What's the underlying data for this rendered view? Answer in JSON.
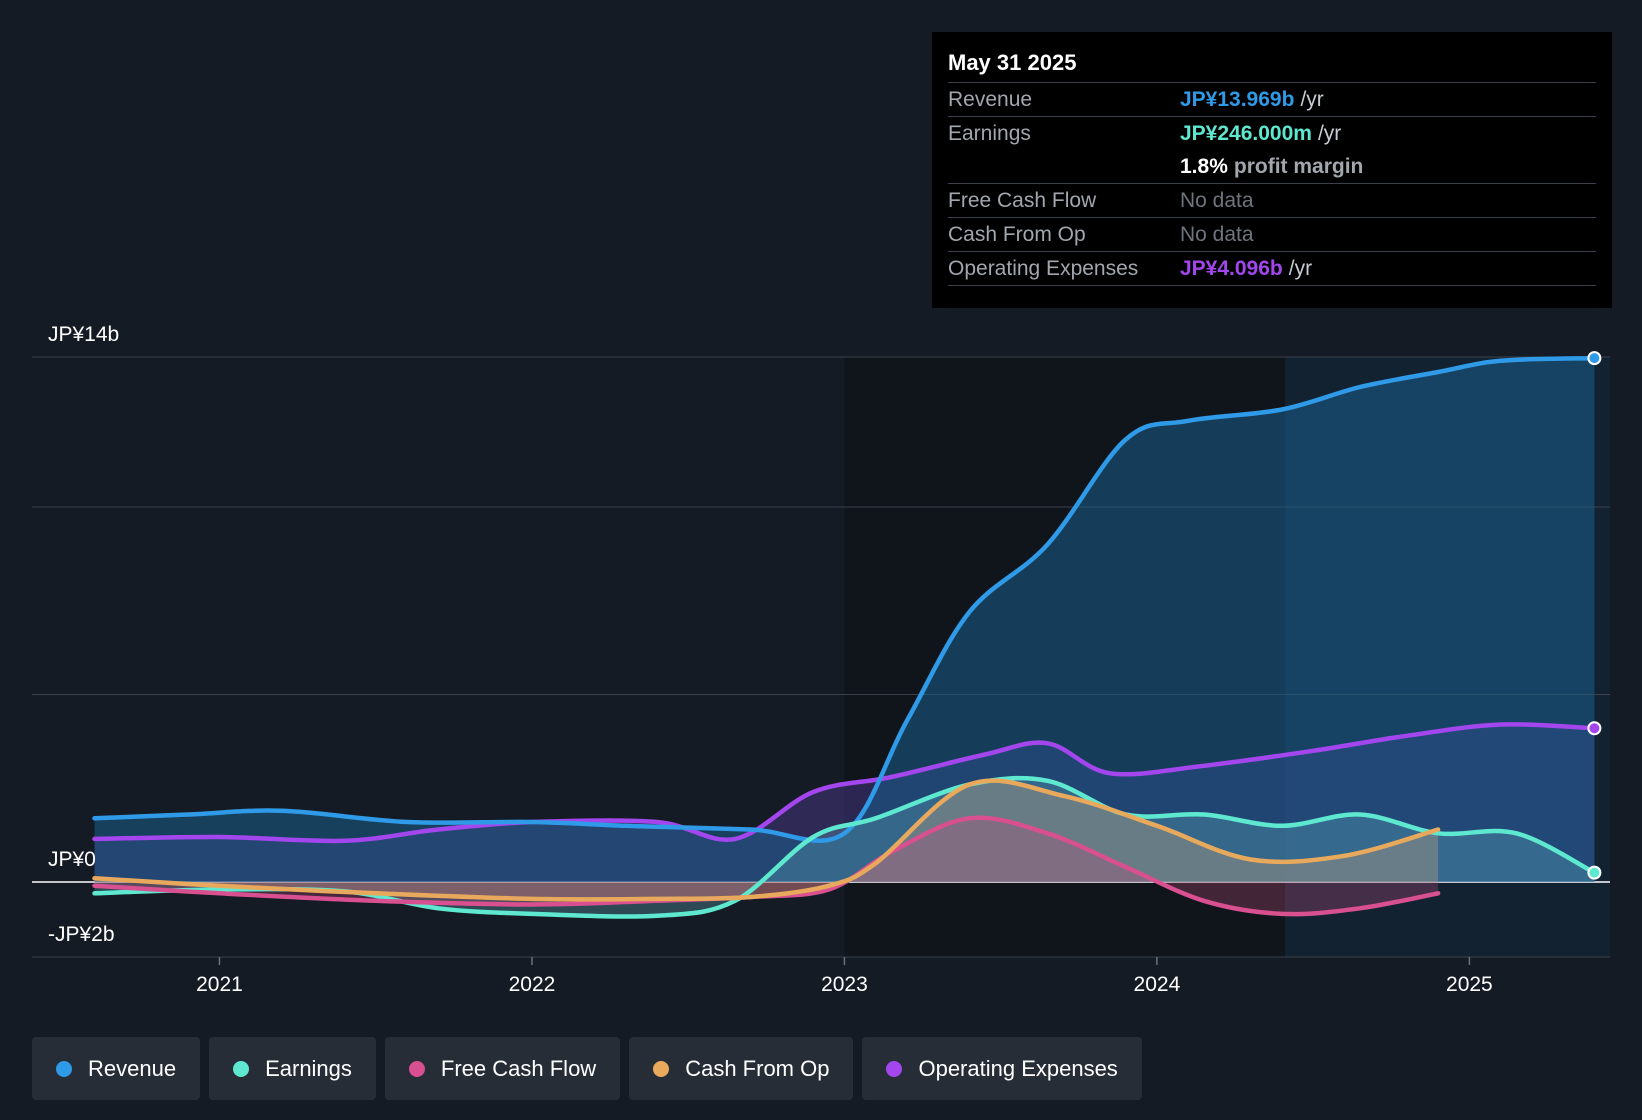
{
  "chart_data": {
    "type": "area",
    "x_range": [
      2020.4,
      2025.45
    ],
    "ylim": [
      -2.0,
      14.0
    ],
    "y_axis_labels": [
      {
        "value": 14,
        "text": "JP¥14b"
      },
      {
        "value": 0,
        "text": "JP¥0"
      },
      {
        "value": -2,
        "text": "-JP¥2b"
      }
    ],
    "gridlines": [
      14,
      10,
      5,
      0,
      -2
    ],
    "x_ticks": [
      {
        "value": 2021,
        "text": "2021"
      },
      {
        "value": 2022,
        "text": "2022"
      },
      {
        "value": 2023,
        "text": "2023"
      },
      {
        "value": 2024,
        "text": "2024"
      },
      {
        "value": 2025,
        "text": "2025"
      }
    ],
    "highlight_start": 2024.41,
    "series": [
      {
        "key": "revenue",
        "name": "Revenue",
        "color": "#2f9ae7",
        "fill": "#1a5f8c",
        "fill_opacity": 0.55,
        "x": [
          2020.6,
          2020.9,
          2021.2,
          2021.6,
          2022.0,
          2022.3,
          2022.7,
          2023.0,
          2023.2,
          2023.4,
          2023.65,
          2023.9,
          2024.1,
          2024.4,
          2024.65,
          2024.9,
          2025.1,
          2025.4
        ],
        "values": [
          1.7,
          1.8,
          1.9,
          1.6,
          1.6,
          1.5,
          1.4,
          1.3,
          4.3,
          7.2,
          9.0,
          11.8,
          12.3,
          12.6,
          13.2,
          13.6,
          13.9,
          13.97
        ]
      },
      {
        "key": "earnings",
        "name": "Earnings",
        "color": "#5ee8d0",
        "fill": "#63b6c4",
        "fill_opacity": 0.3,
        "x": [
          2020.6,
          2021.0,
          2021.4,
          2021.7,
          2022.0,
          2022.4,
          2022.65,
          2022.9,
          2023.1,
          2023.4,
          2023.65,
          2023.9,
          2024.15,
          2024.4,
          2024.65,
          2024.9,
          2025.15,
          2025.4
        ],
        "values": [
          -0.3,
          -0.2,
          -0.25,
          -0.7,
          -0.85,
          -0.9,
          -0.5,
          1.2,
          1.7,
          2.6,
          2.7,
          1.8,
          1.8,
          1.5,
          1.8,
          1.3,
          1.3,
          0.25
        ]
      },
      {
        "key": "fcf",
        "name": "Free Cash Flow",
        "color": "#d8508f",
        "fill": "#b84b7b",
        "fill_opacity": 0.3,
        "x": [
          2020.6,
          2021.0,
          2021.5,
          2022.0,
          2022.4,
          2022.7,
          2022.95,
          2023.15,
          2023.4,
          2023.65,
          2023.9,
          2024.15,
          2024.4,
          2024.65,
          2024.9
        ],
        "values": [
          -0.1,
          -0.3,
          -0.5,
          -0.6,
          -0.5,
          -0.4,
          -0.2,
          0.8,
          1.7,
          1.3,
          0.4,
          -0.5,
          -0.85,
          -0.7,
          -0.3
        ]
      },
      {
        "key": "cfo",
        "name": "Cash From Op",
        "color": "#e8a95c",
        "fill": "#c9a27a",
        "fill_opacity": 0.35,
        "x": [
          2020.6,
          2021.0,
          2021.5,
          2022.0,
          2022.4,
          2022.7,
          2022.95,
          2023.1,
          2023.4,
          2023.7,
          2024.0,
          2024.3,
          2024.6,
          2024.9
        ],
        "values": [
          0.1,
          -0.1,
          -0.3,
          -0.45,
          -0.45,
          -0.4,
          -0.1,
          0.5,
          2.6,
          2.3,
          1.5,
          0.6,
          0.7,
          1.4
        ]
      },
      {
        "key": "opex",
        "name": "Operating Expenses",
        "color": "#a346ee",
        "fill": "#4f3b95",
        "fill_opacity": 0.45,
        "x": [
          2020.6,
          2021.0,
          2021.4,
          2021.7,
          2022.0,
          2022.4,
          2022.65,
          2022.9,
          2023.15,
          2023.45,
          2023.65,
          2023.85,
          2024.15,
          2024.5,
          2024.8,
          2025.1,
          2025.4
        ],
        "values": [
          1.15,
          1.2,
          1.1,
          1.4,
          1.6,
          1.6,
          1.15,
          2.4,
          2.8,
          3.4,
          3.7,
          2.9,
          3.1,
          3.5,
          3.9,
          4.2,
          4.1
        ]
      }
    ]
  },
  "tooltip": {
    "date": "May 31 2025",
    "revenue_label": "Revenue",
    "revenue_value": "JP¥13.969b",
    "revenue_unit": "/yr",
    "earnings_label": "Earnings",
    "earnings_value": "JP¥246.000m",
    "earnings_unit": "/yr",
    "margin_value": "1.8%",
    "margin_text": "profit margin",
    "fcf_label": "Free Cash Flow",
    "fcf_value": "No data",
    "cfo_label": "Cash From Op",
    "cfo_value": "No data",
    "opex_label": "Operating Expenses",
    "opex_value": "JP¥4.096b",
    "opex_unit": "/yr",
    "colors": {
      "revenue": "#2f9ae7",
      "earnings": "#5ee8d0",
      "opex": "#a346ee"
    }
  },
  "legend": [
    {
      "label": "Revenue",
      "color": "#2f9ae7"
    },
    {
      "label": "Earnings",
      "color": "#5ee8d0"
    },
    {
      "label": "Free Cash Flow",
      "color": "#d8508f"
    },
    {
      "label": "Cash From Op",
      "color": "#e8a95c"
    },
    {
      "label": "Operating Expenses",
      "color": "#a346ee"
    }
  ]
}
